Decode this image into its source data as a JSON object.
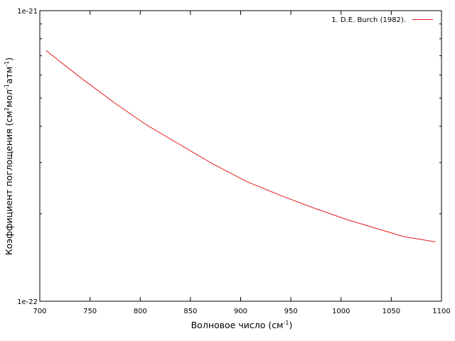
{
  "chart_data": {
    "type": "line",
    "xlabel_main": "Волновое число (см",
    "xlabel_sup": "-1",
    "xlabel_end": ")",
    "ylabel_main": "Коэффициент поглощения (см",
    "ylabel_sup1": "2",
    "ylabel_mid1": "мол",
    "ylabel_sup2": "-1",
    "ylabel_mid2": "атм",
    "ylabel_sup3": "-1",
    "ylabel_end": ")",
    "xlim": [
      700,
      1100
    ],
    "ylim": [
      1e-22,
      1e-21
    ],
    "yscale": "log",
    "grid": false,
    "legend_position": "top-right",
    "x_ticks": [
      "700",
      "750",
      "800",
      "850",
      "900",
      "950",
      "1000",
      "1050",
      "1100"
    ],
    "y_ticks": [
      "1e-22",
      "1e-21"
    ],
    "series": [
      {
        "name": "1. D.E. Burch (1982).",
        "color": "#e41a1c",
        "x": [
          706,
          740,
          775,
          806,
          840,
          870,
          906,
          940,
          975,
          1006,
          1040,
          1062,
          1094
        ],
        "y": [
          7.3e-22,
          5.9e-22,
          4.8e-22,
          4.05e-22,
          3.45e-22,
          3e-22,
          2.58e-22,
          2.31e-22,
          2.08e-22,
          1.91e-22,
          1.76e-22,
          1.67e-22,
          1.6e-22
        ]
      }
    ]
  }
}
